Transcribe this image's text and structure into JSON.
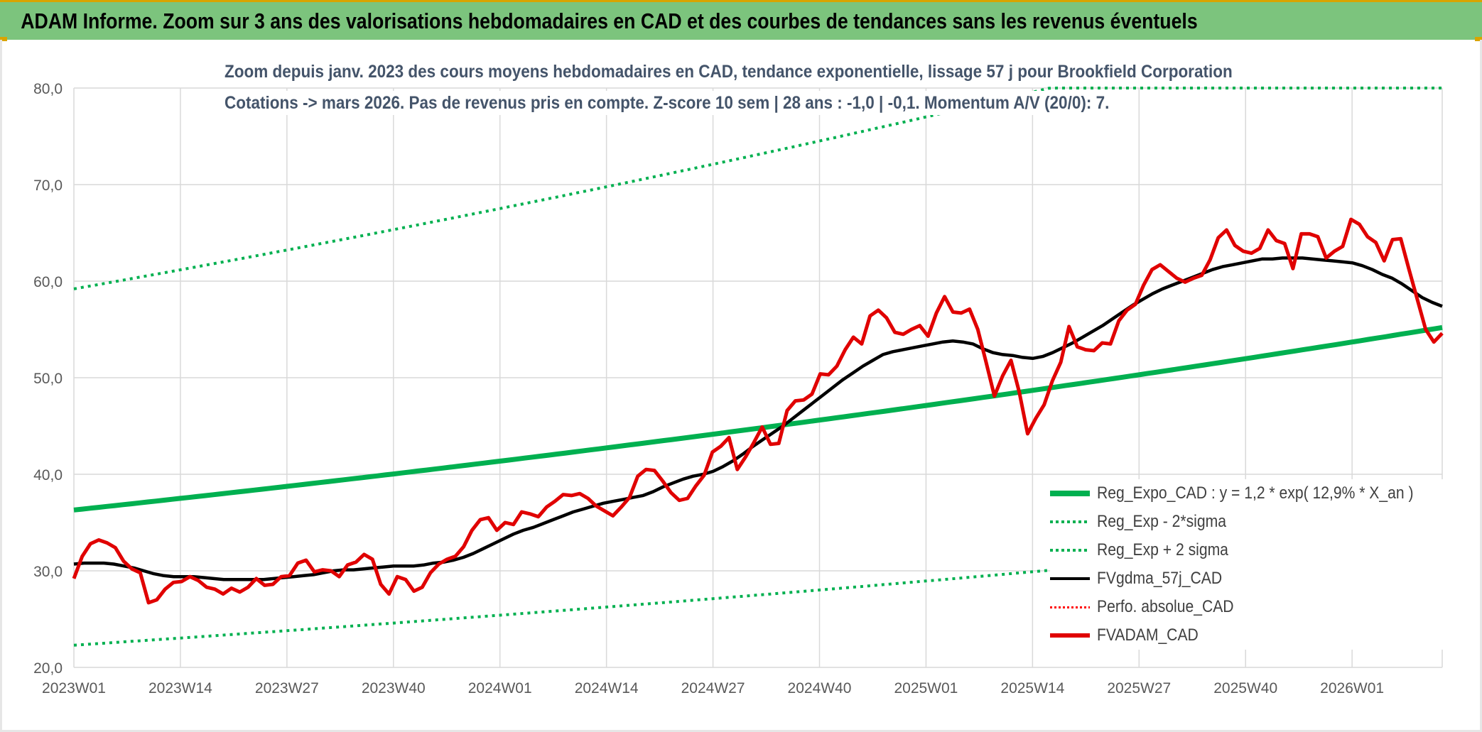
{
  "header": {
    "title": "ADAM Informe. Zoom sur 3 ans des valorisations hebdomadaires en CAD et des courbes de tendances sans les revenus éventuels"
  },
  "chart_data": {
    "type": "line",
    "title_line1": "Zoom depuis janv. 2023 des cours moyens hebdomadaires en CAD, tendance exponentielle, lissage 57 j pour Brookfield Corporation",
    "title_line2": "Cotations -> mars 2026. Pas de revenus pris en compte. Z-score 10 sem | 28 ans : -1,0 | -0,1. Momentum A/V (20/0): 7.",
    "ylim": [
      20,
      80
    ],
    "y_ticks": [
      "20,0",
      "30,0",
      "40,0",
      "50,0",
      "60,0",
      "70,0",
      "80,0"
    ],
    "x_ticks": [
      "2023W01",
      "2023W14",
      "2023W27",
      "2023W40",
      "2024W01",
      "2024W14",
      "2024W27",
      "2024W40",
      "2025W01",
      "2025W14",
      "2025W27",
      "2025W40",
      "2026W01"
    ],
    "x_start_week": "2023W01",
    "x_end_week": "2026W12",
    "grid": true,
    "legend_position": "bottom-right",
    "series": [
      {
        "name": "Reg_Expo_CAD : y = 1,2 * exp( 12,9% *  X_an )",
        "color": "#00b050",
        "style": "solid-thick",
        "start": 36.3,
        "end": 55.2
      },
      {
        "name": "Reg_Exp - 2*sigma",
        "color": "#00b050",
        "style": "dotted",
        "start": 22.3,
        "end": 33.9
      },
      {
        "name": "Reg_Exp + 2 sigma",
        "color": "#00b050",
        "style": "dotted",
        "start": 59.2,
        "end": 90.3
      },
      {
        "name": "FVgdma_57j_CAD",
        "color": "#000000",
        "style": "solid",
        "values": [
          30.7,
          30.8,
          30.8,
          30.8,
          30.7,
          30.5,
          30.3,
          30.0,
          29.7,
          29.5,
          29.4,
          29.4,
          29.4,
          29.3,
          29.2,
          29.1,
          29.1,
          29.1,
          29.1,
          29.1,
          29.2,
          29.3,
          29.4,
          29.5,
          29.6,
          29.8,
          30.0,
          30.1,
          30.1,
          30.2,
          30.3,
          30.4,
          30.5,
          30.5,
          30.5,
          30.6,
          30.8,
          30.9,
          31.1,
          31.4,
          31.8,
          32.3,
          32.8,
          33.3,
          33.8,
          34.2,
          34.5,
          34.9,
          35.3,
          35.7,
          36.1,
          36.4,
          36.7,
          37.0,
          37.2,
          37.4,
          37.6,
          37.8,
          38.2,
          38.7,
          39.1,
          39.5,
          39.8,
          40.0,
          40.3,
          40.8,
          41.4,
          42.1,
          42.9,
          43.6,
          44.3,
          45.0,
          45.8,
          46.6,
          47.4,
          48.2,
          49.0,
          49.8,
          50.5,
          51.2,
          51.8,
          52.4,
          52.7,
          52.9,
          53.1,
          53.3,
          53.5,
          53.7,
          53.8,
          53.7,
          53.5,
          53.0,
          52.6,
          52.4,
          52.3,
          52.1,
          52.0,
          52.2,
          52.6,
          53.1,
          53.6,
          54.2,
          54.8,
          55.4,
          56.1,
          56.8,
          57.5,
          58.1,
          58.7,
          59.2,
          59.6,
          60.0,
          60.4,
          60.8,
          61.2,
          61.5,
          61.7,
          61.9,
          62.1,
          62.3,
          62.3,
          62.4,
          62.4,
          62.4,
          62.3,
          62.2,
          62.1,
          62.0,
          61.9,
          61.6,
          61.2,
          60.7,
          60.3,
          59.7,
          59.0,
          58.3,
          57.8,
          57.4
        ]
      },
      {
        "name": "Perfo. absolue_CAD",
        "color": "#ff0000",
        "style": "dotted"
      },
      {
        "name": "FVADAM_CAD",
        "color": "#e00000",
        "style": "solid-thick",
        "values": [
          29.2,
          31.5,
          32.8,
          33.2,
          32.9,
          32.4,
          31.0,
          30.2,
          29.8,
          26.7,
          27.0,
          28.1,
          28.8,
          28.9,
          29.4,
          29.0,
          28.3,
          28.1,
          27.6,
          28.2,
          27.8,
          28.3,
          29.2,
          28.5,
          28.6,
          29.4,
          29.5,
          30.8,
          31.1,
          29.9,
          30.1,
          30.0,
          29.4,
          30.6,
          30.9,
          31.7,
          31.2,
          28.6,
          27.6,
          29.4,
          29.1,
          27.9,
          28.3,
          29.8,
          30.7,
          31.2,
          31.5,
          32.5,
          34.2,
          35.3,
          35.5,
          34.2,
          35.0,
          34.8,
          36.1,
          35.9,
          35.6,
          36.6,
          37.2,
          37.9,
          37.8,
          38.0,
          37.5,
          36.7,
          36.2,
          35.7,
          36.6,
          37.6,
          39.8,
          40.5,
          40.4,
          39.3,
          38.1,
          37.3,
          37.5,
          38.8,
          39.9,
          42.3,
          42.9,
          43.8,
          40.5,
          41.8,
          43.3,
          44.9,
          43.1,
          43.2,
          46.6,
          47.6,
          47.7,
          48.3,
          50.4,
          50.3,
          51.2,
          52.9,
          54.2,
          53.5,
          56.4,
          57.0,
          56.2,
          54.7,
          54.5,
          55.0,
          55.4,
          54.3,
          56.7,
          58.4,
          56.8,
          56.7,
          57.1,
          55.0,
          51.6,
          48.1,
          50.2,
          51.8,
          48.5,
          44.2,
          45.8,
          47.2,
          49.7,
          51.6,
          55.3,
          53.2,
          52.9,
          52.8,
          53.6,
          53.5,
          55.9,
          57.0,
          57.6,
          59.6,
          61.2,
          61.7,
          61.0,
          60.3,
          59.9,
          60.3,
          60.6,
          62.2,
          64.5,
          65.3,
          63.7,
          63.1,
          62.9,
          63.4,
          65.3,
          64.2,
          63.9,
          61.3,
          64.9,
          64.9,
          64.6,
          62.4,
          63.1,
          63.6,
          66.4,
          65.9,
          64.6,
          64.0,
          62.1,
          64.3,
          64.4,
          61.2,
          58.1,
          55.0,
          53.7,
          54.6
        ]
      }
    ]
  },
  "legend": {
    "items": [
      {
        "label": "Reg_Expo_CAD : y = 1,2 * exp( 12,9% *  X_an )",
        "color": "#00b050",
        "style": "solid-thick"
      },
      {
        "label": "Reg_Exp - 2*sigma",
        "color": "#00b050",
        "style": "dotted"
      },
      {
        "label": "Reg_Exp + 2 sigma",
        "color": "#00b050",
        "style": "dotted"
      },
      {
        "label": "FVgdma_57j_CAD",
        "color": "#000000",
        "style": "solid"
      },
      {
        "label": "Perfo. absolue_CAD",
        "color": "#ff0000",
        "style": "dotted"
      },
      {
        "label": "FVADAM_CAD",
        "color": "#e00000",
        "style": "solid-thick"
      }
    ]
  }
}
